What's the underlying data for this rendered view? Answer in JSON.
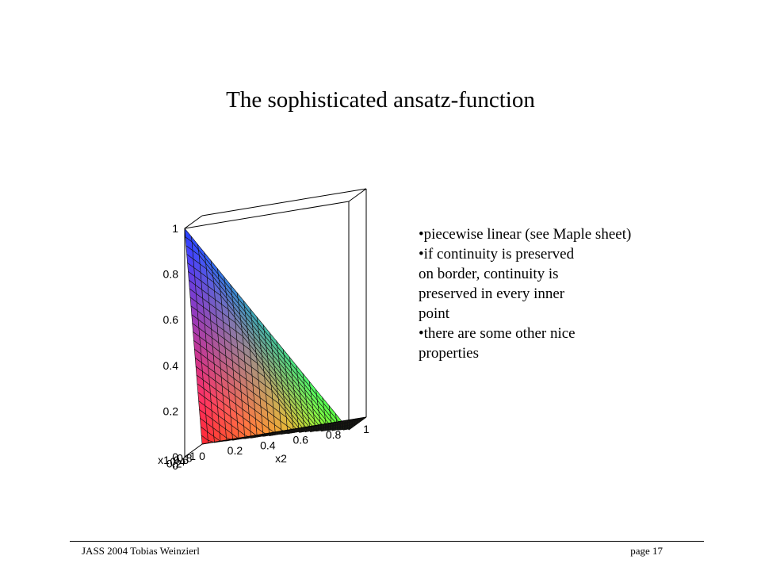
{
  "slide": {
    "title": "The sophisticated ansatz-function",
    "bullets": [
      "•piecewise linear (see Maple sheet)",
      "•if continuity is preserved",
      "on border, continuity is",
      "preserved in every inner",
      "point",
      "•there are some other nice",
      "properties"
    ],
    "footer_left": "JASS 2004 Tobias Weinzierl",
    "footer_right": "page 17"
  },
  "chart_data": {
    "type": "surface3d",
    "function": "piecewise linear ansatz-function",
    "xlabel": "x1",
    "ylabel": "x2",
    "zlabel": "",
    "x_ticks": [
      "0",
      "0.2",
      "0.4",
      "0.6",
      "0.8",
      "1"
    ],
    "y_ticks": [
      "0",
      "0.2",
      "0.4",
      "0.6",
      "0.8",
      "1"
    ],
    "z_ticks": [
      "0",
      "0.2",
      "0.4",
      "0.6",
      "0.8",
      "1"
    ],
    "xlim": [
      0,
      1
    ],
    "ylim": [
      0,
      1
    ],
    "zlim": [
      0,
      1
    ],
    "grid_resolution": 25,
    "colors": [
      "#ff3a3a",
      "#ffff40",
      "#40ff40",
      "#4040ff"
    ]
  }
}
